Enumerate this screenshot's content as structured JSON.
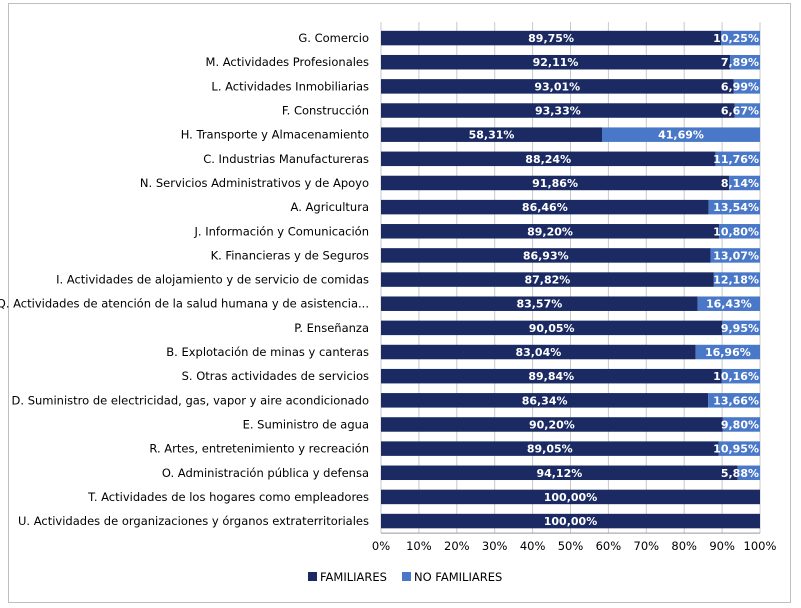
{
  "chart_data": {
    "type": "bar",
    "stacked": true,
    "percent_stacked": true,
    "orientation": "horizontal",
    "categories": [
      "G. Comercio",
      "M. Actividades Profesionales",
      "L. Actividades Inmobiliarias",
      "F. Construcción",
      "H. Transporte y Almacenamiento",
      "C. Industrias Manufactureras",
      "N. Servicios Administrativos y de Apoyo",
      "A. Agricultura",
      "J. Información y Comunicación",
      "K. Financieras y de Seguros",
      "I. Actividades de alojamiento y de servicio de comidas",
      "Q. Actividades de atención de la salud humana y de asistencia...",
      "P. Enseñanza",
      "B. Explotación de minas y canteras",
      "S. Otras actividades de servicios",
      "D. Suministro de electricidad, gas, vapor y aire acondicionado",
      "E. Suministro de agua",
      "R. Artes, entretenimiento y recreación",
      "O. Administración pública y defensa",
      "T. Actividades de los hogares como empleadores",
      "U. Actividades de organizaciones y órganos extraterritoriales"
    ],
    "series": [
      {
        "name": "FAMILIARES",
        "color": "#1b2a63",
        "values": [
          89.75,
          92.11,
          93.01,
          93.33,
          58.31,
          88.24,
          91.86,
          86.46,
          89.2,
          86.93,
          87.82,
          83.57,
          90.05,
          83.04,
          89.84,
          86.34,
          90.2,
          89.05,
          94.12,
          100.0,
          100.0
        ],
        "labels": [
          "89,75%",
          "92,11%",
          "93,01%",
          "93,33%",
          "58,31%",
          "88,24%",
          "91,86%",
          "86,46%",
          "89,20%",
          "86,93%",
          "87,82%",
          "83,57%",
          "90,05%",
          "83,04%",
          "89,84%",
          "86,34%",
          "90,20%",
          "89,05%",
          "94,12%",
          "100,00%",
          "100,00%"
        ]
      },
      {
        "name": "NO FAMILIARES",
        "color": "#4a78c8",
        "values": [
          10.25,
          7.89,
          6.99,
          6.67,
          41.69,
          11.76,
          8.14,
          13.54,
          10.8,
          13.07,
          12.18,
          16.43,
          9.95,
          16.96,
          10.16,
          13.66,
          9.8,
          10.95,
          5.88,
          0,
          0
        ],
        "labels": [
          "10,25%",
          "7,89%",
          "6,99%",
          "6,67%",
          "41,69%",
          "11,76%",
          "8,14%",
          "13,54%",
          "10,80%",
          "13,07%",
          "12,18%",
          "16,43%",
          "9,95%",
          "16,96%",
          "10,16%",
          "13,66%",
          "9,80%",
          "10,95%",
          "5,88%",
          "",
          ""
        ]
      }
    ],
    "xlim": [
      0,
      100
    ],
    "x_ticks": [
      "0%",
      "10%",
      "20%",
      "30%",
      "40%",
      "50%",
      "60%",
      "70%",
      "80%",
      "90%",
      "100%"
    ],
    "xlabel": "",
    "ylabel": "",
    "title": "",
    "grid": true,
    "legend_position": "bottom"
  }
}
